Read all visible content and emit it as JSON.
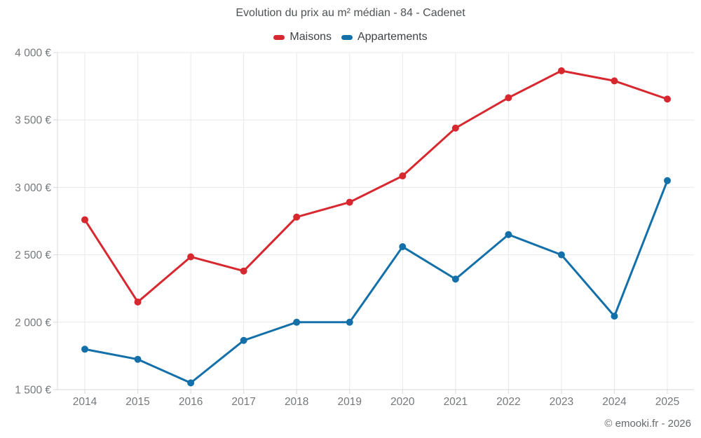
{
  "footer": {
    "copyright": "© emooki.fr - 2026"
  },
  "chart_data": {
    "type": "line",
    "title": "Evolution du prix au m² médian - 84 - Cadenet",
    "x": [
      2014,
      2015,
      2016,
      2017,
      2018,
      2019,
      2020,
      2021,
      2022,
      2023,
      2024,
      2025
    ],
    "xtick_labels": [
      "2014",
      "2015",
      "2016",
      "2017",
      "2018",
      "2019",
      "2020",
      "2021",
      "2022",
      "2023",
      "2024",
      "2025"
    ],
    "series": [
      {
        "name": "Maisons",
        "color": "#d8282f",
        "values": [
          2760,
          2150,
          2485,
          2380,
          2780,
          2890,
          3085,
          3440,
          3665,
          3865,
          3790,
          3655
        ]
      },
      {
        "name": "Appartements",
        "color": "#1470a8",
        "values": [
          1800,
          1725,
          1550,
          1865,
          2000,
          2000,
          2560,
          2320,
          2650,
          2500,
          2045,
          3050
        ]
      }
    ],
    "ylim": [
      1500,
      4000
    ],
    "yticks": [
      1500,
      2000,
      2500,
      3000,
      3500,
      4000
    ],
    "ytick_labels": [
      "1 500 €",
      "2 000 €",
      "2 500 €",
      "3 000 €",
      "3 500 €",
      "4 000 €"
    ],
    "grid": true,
    "legend_position": "top",
    "colors": {
      "grid": "#e9e9e9",
      "axis": "#d8d8d8",
      "tick_text": "#75787b"
    }
  }
}
